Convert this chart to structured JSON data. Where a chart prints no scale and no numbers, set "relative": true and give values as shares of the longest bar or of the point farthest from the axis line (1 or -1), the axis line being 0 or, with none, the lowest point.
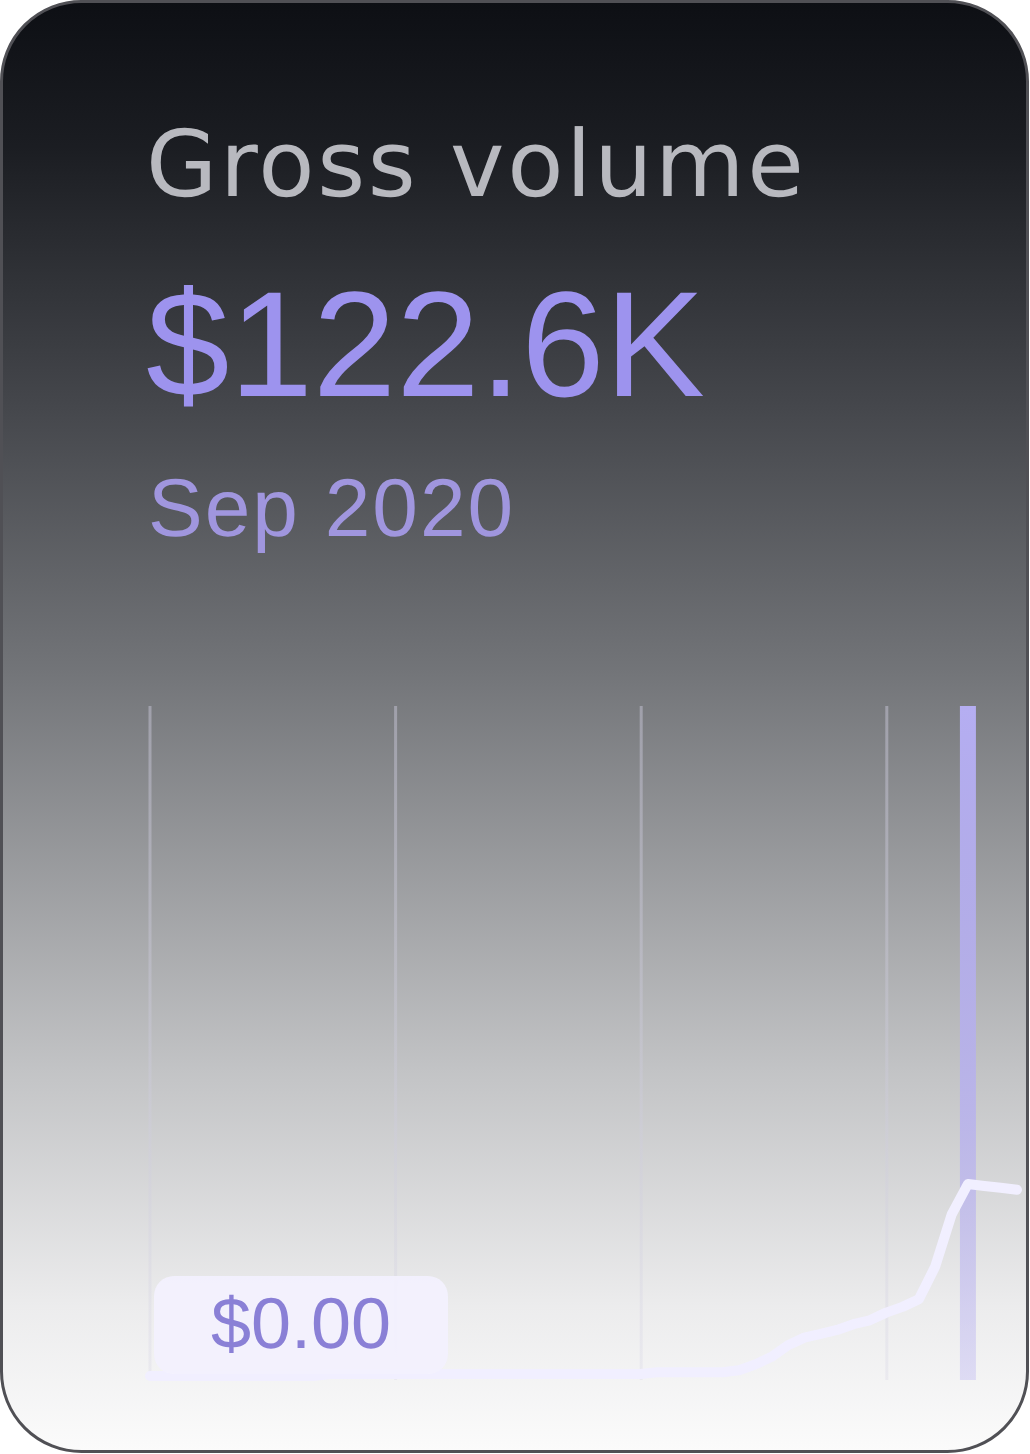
{
  "chart_data": {
    "type": "line",
    "title": "Gross volume",
    "subtitle": "$122.6K",
    "annotations": [
      "Sep 2020",
      {
        "text": "$0.00",
        "y": 0
      }
    ],
    "relative": true,
    "grid": "x",
    "categories": [
      null,
      null,
      null,
      null,
      null,
      null,
      null,
      null,
      null,
      null,
      null,
      null,
      null,
      null,
      null,
      null,
      null,
      null,
      null,
      null,
      null,
      null,
      null,
      null,
      null,
      null,
      null,
      null,
      null,
      null,
      null,
      null,
      null,
      null,
      null,
      null,
      null,
      null,
      null,
      null,
      null,
      null,
      null,
      null,
      null,
      null,
      null,
      null,
      null,
      null,
      null,
      null,
      null,
      null
    ],
    "values": [
      0,
      0,
      0,
      0,
      0,
      0,
      0,
      0,
      0,
      0,
      0,
      0.01,
      0.01,
      0.01,
      0.01,
      0.01,
      0.01,
      0.01,
      0.01,
      0.01,
      0.01,
      0.01,
      0.01,
      0.01,
      0.01,
      0.01,
      0.01,
      0.01,
      0.01,
      0.01,
      0.01,
      0.02,
      0.02,
      0.02,
      0.02,
      0.02,
      0.03,
      0.06,
      0.1,
      0.16,
      0.2,
      0.22,
      0.24,
      0.27,
      0.29,
      0.33,
      0.36,
      0.4,
      0.57,
      0.84,
      1,
      0.99,
      0.98,
      0.97
    ],
    "color": "#f1efff"
  }
}
